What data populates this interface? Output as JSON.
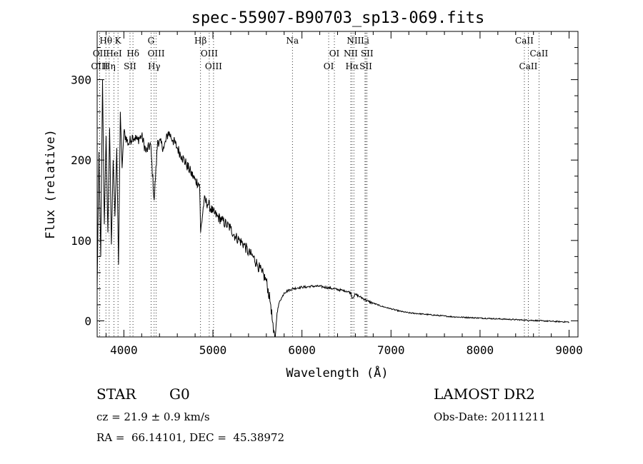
{
  "chart_data": {
    "type": "line",
    "title": "spec-55907-B90703_sp13-069.fits",
    "xlabel": "Wavelength (Å)",
    "ylabel": "Flux (relative)",
    "xlim": [
      3700,
      9100
    ],
    "ylim": [
      -20,
      360
    ],
    "xticks": [
      4000,
      5000,
      6000,
      7000,
      8000,
      9000
    ],
    "yticks": [
      0,
      100,
      200,
      300
    ],
    "grid": false,
    "series": [
      {
        "x": [
          3700,
          3720,
          3740,
          3760,
          3780,
          3800,
          3820,
          3840,
          3860,
          3880,
          3900,
          3920,
          3940,
          3960,
          3980,
          4000,
          4050,
          4100,
          4150,
          4200,
          4250,
          4300,
          4340,
          4380,
          4450,
          4500,
          4550,
          4600,
          4650,
          4700,
          4750,
          4800,
          4850,
          4862,
          4900,
          4950,
          5000,
          5050,
          5100,
          5150,
          5200,
          5250,
          5300,
          5350,
          5400,
          5450,
          5500,
          5550,
          5600,
          5650,
          5680,
          5700,
          5720,
          5750,
          5780,
          5800,
          5850,
          5900,
          5950,
          6000,
          6050,
          6100,
          6150,
          6200,
          6250,
          6300,
          6350,
          6400,
          6450,
          6500,
          6550,
          6563,
          6600,
          6650,
          6700,
          6750,
          6800,
          6850,
          6900,
          7000,
          7100,
          7200,
          7300,
          7400,
          7500,
          7600,
          7700,
          7800,
          7900,
          8000,
          8100,
          8200,
          8300,
          8400,
          8500,
          8600,
          8700,
          8800,
          8900,
          9000
        ],
        "y": [
          40,
          210,
          80,
          300,
          120,
          230,
          110,
          240,
          95,
          200,
          130,
          215,
          70,
          260,
          190,
          235,
          220,
          230,
          225,
          230,
          210,
          220,
          150,
          225,
          215,
          235,
          225,
          215,
          205,
          195,
          185,
          175,
          170,
          110,
          150,
          145,
          135,
          130,
          125,
          120,
          115,
          105,
          100,
          95,
          85,
          80,
          70,
          60,
          50,
          20,
          -15,
          -20,
          10,
          25,
          30,
          35,
          38,
          40,
          41,
          42,
          42,
          43,
          43,
          43,
          42,
          41,
          40,
          39,
          38,
          37,
          35,
          28,
          33,
          30,
          27,
          24,
          22,
          20,
          18,
          15,
          12,
          10,
          9,
          8,
          7,
          6,
          5,
          4.5,
          4,
          3.5,
          3,
          2.5,
          2,
          1.5,
          1,
          0.5,
          0,
          -0.5,
          -1,
          -1.5
        ]
      }
    ],
    "lines": [
      {
        "label": "Hθ",
        "x": 3798,
        "row": 0
      },
      {
        "label": "K",
        "x": 3934,
        "row": 0
      },
      {
        "label": "G",
        "x": 4305,
        "row": 0
      },
      {
        "label": "Hβ",
        "x": 4861,
        "row": 0
      },
      {
        "label": "Na",
        "x": 5893,
        "row": 0
      },
      {
        "label": "NII",
        "x": 6583,
        "row": 0
      },
      {
        "label": "Li",
        "x": 6708,
        "row": 0
      },
      {
        "label": "CaII",
        "x": 8498,
        "row": 0
      },
      {
        "label": "OII",
        "x": 3727,
        "row": 1
      },
      {
        "label": "HeI",
        "x": 3889,
        "row": 1
      },
      {
        "label": "Hδ",
        "x": 4102,
        "row": 1
      },
      {
        "label": "OIII",
        "x": 4363,
        "row": 1
      },
      {
        "label": "OIII",
        "x": 4959,
        "row": 1
      },
      {
        "label": "OI",
        "x": 6364,
        "row": 1
      },
      {
        "label": "NII",
        "x": 6548,
        "row": 1
      },
      {
        "label": "SII",
        "x": 6731,
        "row": 1
      },
      {
        "label": "CaII",
        "x": 8662,
        "row": 1
      },
      {
        "label": "OIII",
        "x": 3727,
        "row": 2
      },
      {
        "label": "Hη",
        "x": 3835,
        "row": 2
      },
      {
        "label": "SII",
        "x": 4069,
        "row": 2
      },
      {
        "label": "Hγ",
        "x": 4340,
        "row": 2
      },
      {
        "label": "OIII",
        "x": 5007,
        "row": 2
      },
      {
        "label": "OI",
        "x": 6300,
        "row": 2
      },
      {
        "label": "Hα",
        "x": 6563,
        "row": 2
      },
      {
        "label": "SII",
        "x": 6717,
        "row": 2
      },
      {
        "label": "CaII",
        "x": 8542,
        "row": 2
      }
    ]
  },
  "info": {
    "class": "STAR",
    "subclass": "G0",
    "survey": "LAMOST DR2",
    "cz": "cz = 21.9 ± 0.9 km/s",
    "obs_date": "Obs-Date: 20111211",
    "radec": "RA =  66.14101, DEC =  45.38972"
  }
}
